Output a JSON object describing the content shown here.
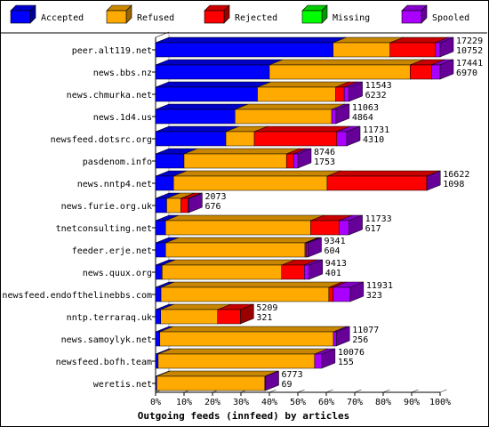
{
  "chart_data": {
    "type": "bar",
    "orientation": "horizontal",
    "stacked": true,
    "normalized_percent": true,
    "title": "",
    "xlabel": "Outgoing feeds (innfeed) by articles",
    "ylabel": "",
    "xlim": [
      0,
      100
    ],
    "x_ticks": [
      "0%",
      "10%",
      "20%",
      "30%",
      "40%",
      "50%",
      "60%",
      "70%",
      "80%",
      "90%",
      "100%"
    ],
    "legend_position": "top",
    "grid": false,
    "series": [
      {
        "name": "Accepted",
        "color": "#0000ff"
      },
      {
        "name": "Refused",
        "color": "#ffaa00"
      },
      {
        "name": "Rejected",
        "color": "#ff0000"
      },
      {
        "name": "Missing",
        "color": "#00ff00"
      },
      {
        "name": "Spooled",
        "color": "#aa00ff"
      }
    ],
    "bars": [
      {
        "label": "peer.alt119.net",
        "offered": "17229",
        "accepted_count": "10752",
        "percent": [
          62.4,
          20.0,
          16.0,
          0,
          1.6
        ]
      },
      {
        "label": "news.bbs.nz",
        "offered": "17441",
        "accepted_count": "6970",
        "percent": [
          40.0,
          49.5,
          7.5,
          0,
          3.0
        ]
      },
      {
        "label": "news.chmurka.net",
        "offered": "11543",
        "accepted_count": "6232",
        "percent": [
          35.8,
          27.5,
          3.0,
          0,
          1.7
        ]
      },
      {
        "label": "news.1d4.us",
        "offered": "11063",
        "accepted_count": "4864",
        "percent": [
          27.9,
          34.0,
          0,
          0,
          1.5
        ]
      },
      {
        "label": "newsfeed.dotsrc.org",
        "offered": "11731",
        "accepted_count": "4310",
        "percent": [
          24.7,
          10.0,
          29.0,
          0,
          3.5
        ]
      },
      {
        "label": "pasdenom.info",
        "offered": "8746",
        "accepted_count": "1753",
        "percent": [
          10.0,
          36.0,
          2.5,
          0,
          1.5
        ]
      },
      {
        "label": "news.nntp4.net",
        "offered": "16622",
        "accepted_count": "1098",
        "percent": [
          6.3,
          54.0,
          35.0,
          0,
          0.1
        ]
      },
      {
        "label": "news.furie.org.uk",
        "offered": "2073",
        "accepted_count": "676",
        "percent": [
          3.9,
          5.0,
          2.5,
          0,
          0.3
        ]
      },
      {
        "label": "tnetconsulting.net",
        "offered": "11733",
        "accepted_count": "617",
        "percent": [
          3.5,
          51.0,
          10.0,
          0,
          3.5
        ]
      },
      {
        "label": "feeder.erje.net",
        "offered": "9341",
        "accepted_count": "604",
        "percent": [
          3.5,
          49.0,
          0.5,
          0,
          0.6
        ]
      },
      {
        "label": "news.quux.org",
        "offered": "9413",
        "accepted_count": "401",
        "percent": [
          2.3,
          42.0,
          8.0,
          0,
          1.7
        ]
      },
      {
        "label": "newsfeed.endofthelinebbs.com",
        "offered": "11931",
        "accepted_count": "323",
        "percent": [
          1.9,
          59.0,
          1.5,
          0,
          6.0
        ]
      },
      {
        "label": "nntp.terraraq.uk",
        "offered": "5209",
        "accepted_count": "321",
        "percent": [
          1.8,
          20.0,
          8.0,
          0,
          0
        ]
      },
      {
        "label": "news.samoylyk.net",
        "offered": "11077",
        "accepted_count": "256",
        "percent": [
          1.5,
          61.0,
          0,
          0,
          1.0
        ]
      },
      {
        "label": "newsfeed.bofh.team",
        "offered": "10076",
        "accepted_count": "155",
        "percent": [
          0.9,
          55.0,
          0,
          0,
          2.5
        ]
      },
      {
        "label": "weretis.net",
        "offered": "6773",
        "accepted_count": "69",
        "percent": [
          0.4,
          38.0,
          0,
          0,
          0.2
        ]
      }
    ]
  }
}
